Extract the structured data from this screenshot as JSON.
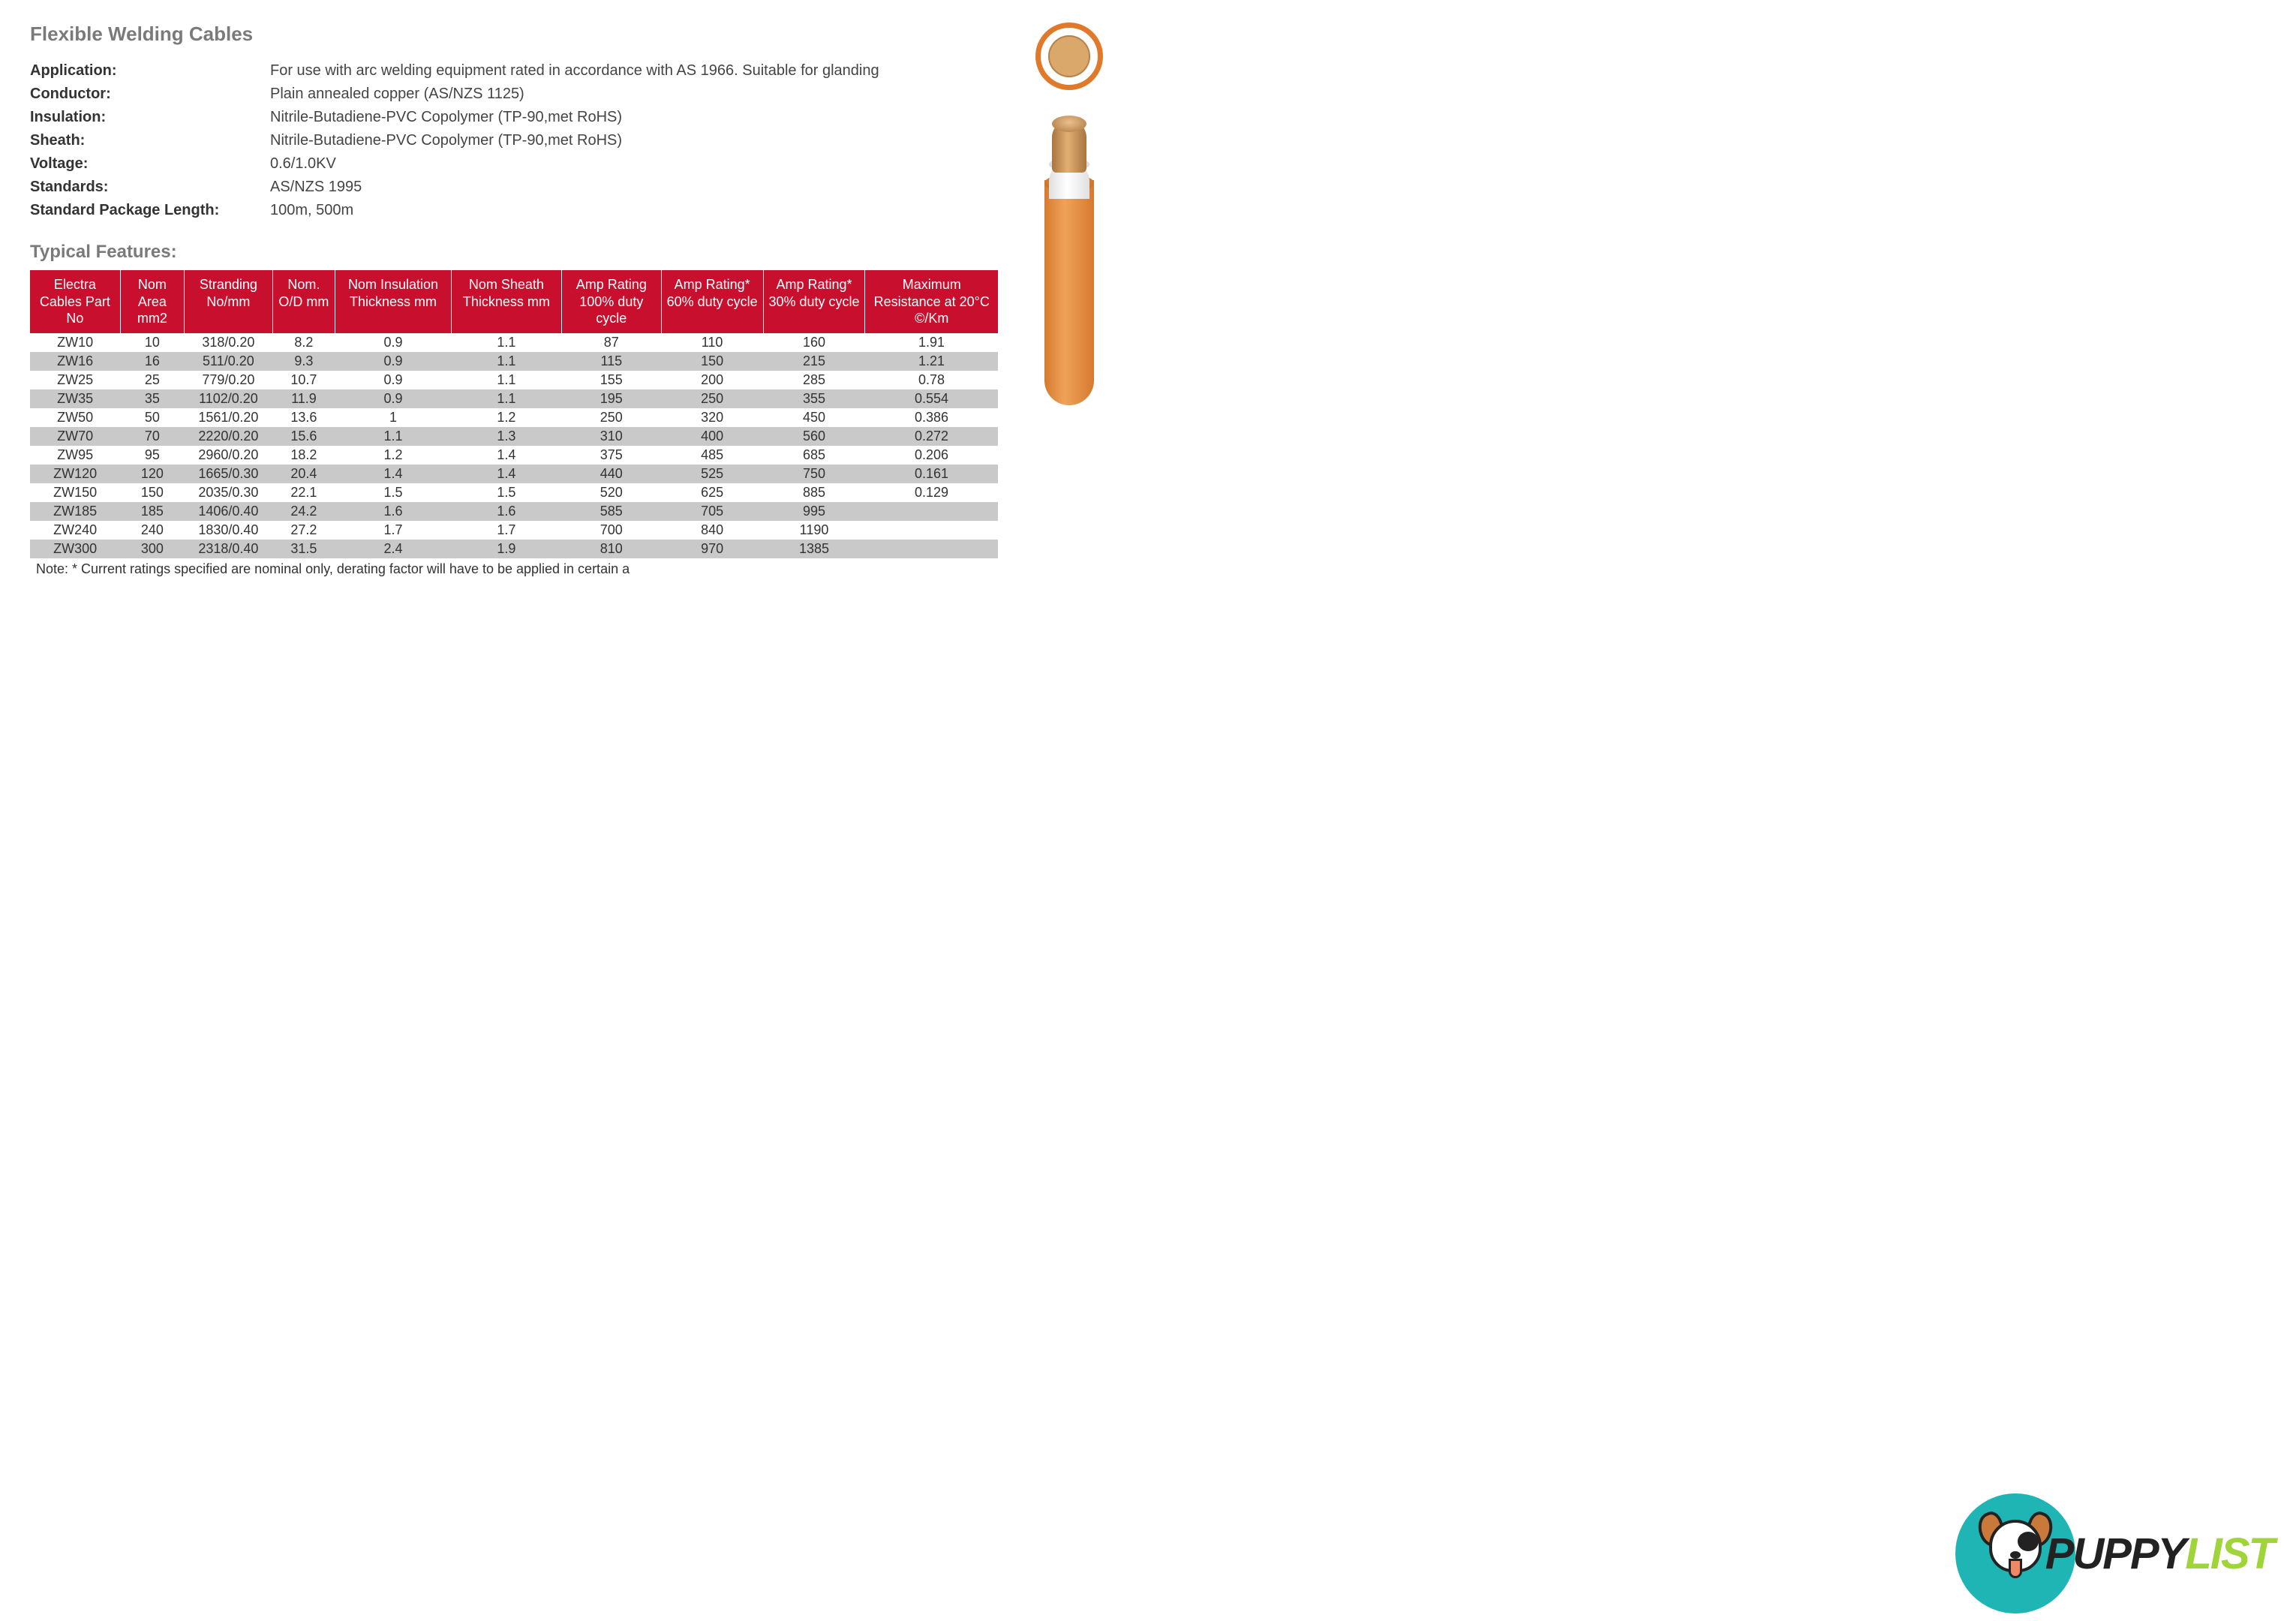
{
  "title": "Flexible Welding Cables",
  "specs": [
    {
      "label": "Application:",
      "value": "For use with arc welding equipment rated in accordance with AS 1966. Suitable for glanding"
    },
    {
      "label": "Conductor:",
      "value": "Plain annealed copper (AS/NZS 1125)"
    },
    {
      "label": "Insulation:",
      "value": "Nitrile-Butadiene-PVC Copolymer (TP-90,met RoHS)"
    },
    {
      "label": "Sheath:",
      "value": "Nitrile-Butadiene-PVC Copolymer (TP-90,met RoHS)"
    },
    {
      "label": "Voltage:",
      "value": "0.6/1.0KV"
    },
    {
      "label": "Standards:",
      "value": "AS/NZS 1995"
    },
    {
      "label": "Standard Package Length:",
      "value": "100m, 500m"
    }
  ],
  "subtitle": "Typical Features:",
  "table": {
    "header_bg": "#c8102e",
    "header_fg": "#ffffff",
    "row_odd_bg": "#ffffff",
    "row_even_bg": "#c9c9c9",
    "columns": [
      "Electra Cables Part No",
      "Nom Area mm2",
      "Stranding No/mm",
      "Nom. O/D mm",
      "Nom Insulation Thickness mm",
      "Nom Sheath Thickness mm",
      "Amp Rating 100% duty cycle",
      "Amp Rating* 60% duty cycle",
      "Amp Rating* 30% duty cycle",
      "Maximum Resistance at 20°C ©/Km"
    ],
    "rows": [
      [
        "ZW10",
        "10",
        "318/0.20",
        "8.2",
        "0.9",
        "1.1",
        "87",
        "110",
        "160",
        "1.91"
      ],
      [
        "ZW16",
        "16",
        "511/0.20",
        "9.3",
        "0.9",
        "1.1",
        "115",
        "150",
        "215",
        "1.21"
      ],
      [
        "ZW25",
        "25",
        "779/0.20",
        "10.7",
        "0.9",
        "1.1",
        "155",
        "200",
        "285",
        "0.78"
      ],
      [
        "ZW35",
        "35",
        "1102/0.20",
        "11.9",
        "0.9",
        "1.1",
        "195",
        "250",
        "355",
        "0.554"
      ],
      [
        "ZW50",
        "50",
        "1561/0.20",
        "13.6",
        "1",
        "1.2",
        "250",
        "320",
        "450",
        "0.386"
      ],
      [
        "ZW70",
        "70",
        "2220/0.20",
        "15.6",
        "1.1",
        "1.3",
        "310",
        "400",
        "560",
        "0.272"
      ],
      [
        "ZW95",
        "95",
        "2960/0.20",
        "18.2",
        "1.2",
        "1.4",
        "375",
        "485",
        "685",
        "0.206"
      ],
      [
        "ZW120",
        "120",
        "1665/0.30",
        "20.4",
        "1.4",
        "1.4",
        "440",
        "525",
        "750",
        "0.161"
      ],
      [
        "ZW150",
        "150",
        "2035/0.30",
        "22.1",
        "1.5",
        "1.5",
        "520",
        "625",
        "885",
        "0.129"
      ],
      [
        "ZW185",
        "185",
        "1406/0.40",
        "24.2",
        "1.6",
        "1.6",
        "585",
        "705",
        "995",
        ""
      ],
      [
        "ZW240",
        "240",
        "1830/0.40",
        "27.2",
        "1.7",
        "1.7",
        "700",
        "840",
        "1190",
        ""
      ],
      [
        "ZW300",
        "300",
        "2318/0.40",
        "31.5",
        "2.4",
        "1.9",
        "810",
        "970",
        "1385",
        ""
      ]
    ],
    "note": "Note: * Current ratings specified are nominal only, derating factor will have to be applied in certain a"
  },
  "watermark": {
    "text1": "PUPPY",
    "text2": "LIST"
  },
  "colors": {
    "sheath": "#e07a2a",
    "copper": "#d9a86a",
    "title_grey": "#7a7a7a"
  }
}
